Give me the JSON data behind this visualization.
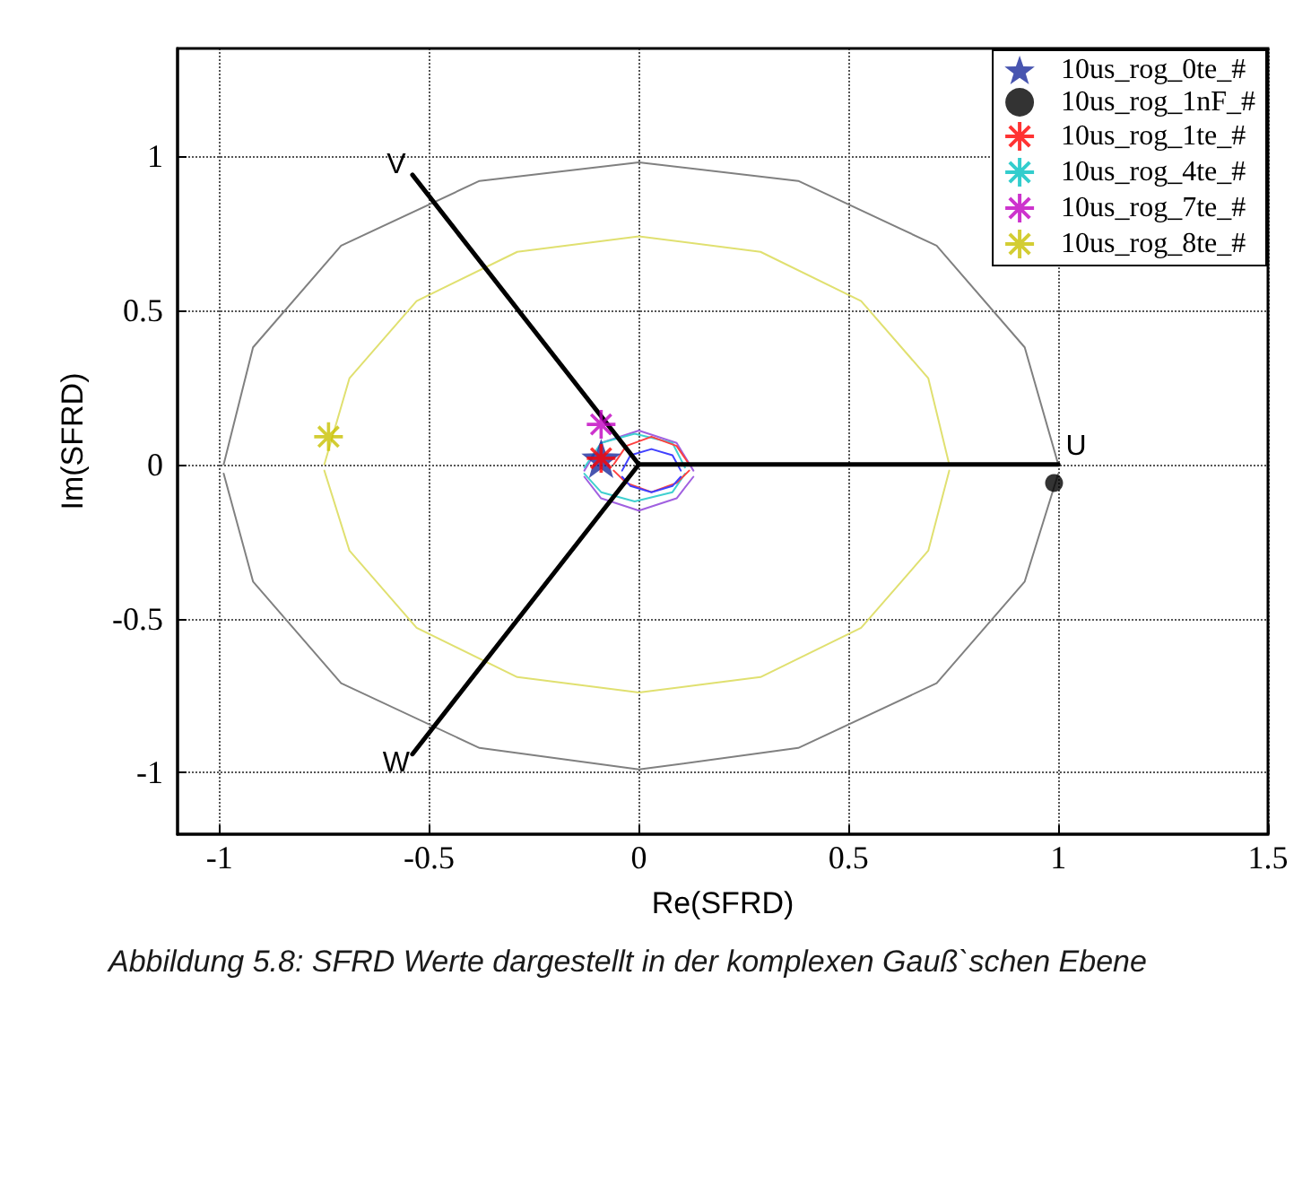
{
  "chart_data": {
    "type": "scatter",
    "xlabel": "Re(SFRD)",
    "ylabel": "Im(SFRD)",
    "xlim": [
      -1.1,
      1.5
    ],
    "ylim": [
      -1.2,
      1.35
    ],
    "xticks": [
      -1,
      -0.5,
      0,
      0.5,
      1,
      1.5
    ],
    "yticks": [
      -1,
      -0.5,
      0,
      0.5,
      1
    ],
    "grid": true,
    "legend": "top right",
    "series": [
      {
        "name": "10us_rog_0te_#",
        "color": "#1a2a9c",
        "marker": "star",
        "x": [
          -0.09
        ],
        "values": [
          0.02
        ]
      },
      {
        "name": "10us_rog_1nF_#",
        "color": "#000000",
        "marker": "circle",
        "x": [
          0.99
        ],
        "values": [
          -0.06
        ]
      },
      {
        "name": "10us_rog_1te_#",
        "color": "#ff0000",
        "marker": "cross",
        "x": [
          -0.09
        ],
        "values": [
          0.02
        ]
      },
      {
        "name": "10us_rog_4te_#",
        "color": "#00c0c0",
        "marker": "cross"
      },
      {
        "name": "10us_rog_7te_#",
        "color": "#c000c0",
        "marker": "cross",
        "x": [
          -0.09
        ],
        "values": [
          0.13
        ]
      },
      {
        "name": "10us_rog_8te_#",
        "color": "#c8c000",
        "marker": "cross",
        "x": [
          -0.74
        ],
        "values": [
          0.09
        ]
      },
      {
        "type": "line",
        "color": "#808080",
        "x": [
          -0.99,
          -0.92,
          -0.71,
          -0.38,
          0,
          0.38,
          0.71,
          0.92,
          1
        ],
        "values": [
          0,
          0.38,
          0.71,
          0.92,
          0.98,
          0.92,
          0.71,
          0.38,
          0
        ]
      },
      {
        "type": "line",
        "color": "#808080",
        "x": [
          -0.99,
          -0.92,
          -0.71,
          -0.38,
          0,
          0.38,
          0.71,
          0.92,
          1
        ],
        "values": [
          -0.03,
          -0.38,
          -0.71,
          -0.92,
          -0.99,
          -0.92,
          -0.71,
          -0.38,
          -0.03
        ]
      },
      {
        "type": "line",
        "color": "#e0e070",
        "x": [
          -0.75,
          -0.69,
          -0.53,
          -0.29,
          0,
          0.29,
          0.53,
          0.69,
          0.74
        ],
        "values": [
          0,
          0.28,
          0.53,
          0.69,
          0.74,
          0.69,
          0.53,
          0.28,
          0
        ]
      },
      {
        "type": "line",
        "color": "#e0e070",
        "x": [
          -0.75,
          -0.69,
          -0.53,
          -0.29,
          0,
          0.29,
          0.53,
          0.69,
          0.74
        ],
        "values": [
          -0.02,
          -0.28,
          -0.53,
          -0.69,
          -0.74,
          -0.69,
          -0.53,
          -0.28,
          -0.02
        ]
      },
      {
        "type": "line",
        "color": "#a060e0",
        "x": [
          -0.13,
          -0.09,
          0,
          0.09,
          0.13
        ],
        "values": [
          -0.02,
          0.07,
          0.11,
          0.07,
          -0.02
        ]
      },
      {
        "type": "line",
        "color": "#a060e0",
        "x": [
          -0.13,
          -0.09,
          0,
          0.09,
          0.13
        ],
        "values": [
          -0.04,
          -0.11,
          -0.15,
          -0.11,
          -0.04
        ]
      },
      {
        "type": "line",
        "color": "#40d0d0",
        "x": [
          -0.13,
          -0.09,
          -0.01,
          0.08,
          0.11
        ],
        "values": [
          -0.01,
          0.07,
          0.1,
          0.07,
          -0.01
        ]
      },
      {
        "type": "line",
        "color": "#40d0d0",
        "x": [
          -0.13,
          -0.09,
          -0.01,
          0.08,
          0.11
        ],
        "values": [
          -0.03,
          -0.09,
          -0.12,
          -0.09,
          -0.03
        ]
      },
      {
        "type": "line",
        "color": "#ff4040",
        "x": [
          -0.06,
          -0.03,
          0.03,
          0.09,
          0.12
        ],
        "values": [
          0,
          0.06,
          0.09,
          0.06,
          0
        ]
      },
      {
        "type": "line",
        "color": "#ff4040",
        "x": [
          -0.06,
          -0.03,
          0.03,
          0.09,
          0.12
        ],
        "values": [
          -0.02,
          -0.06,
          -0.09,
          -0.06,
          -0.02
        ]
      },
      {
        "type": "line",
        "color": "#4040ff",
        "x": [
          -0.04,
          -0.02,
          0.03,
          0.08,
          0.1
        ],
        "values": [
          -0.02,
          0.03,
          0.05,
          0.03,
          -0.02
        ]
      },
      {
        "type": "line",
        "color": "#4040ff",
        "x": [
          -0.04,
          -0.02,
          0.03,
          0.08,
          0.1
        ],
        "values": [
          -0.04,
          -0.07,
          -0.09,
          -0.07,
          -0.04
        ]
      },
      {
        "type": "line",
        "name": "U",
        "color": "#000000",
        "x": [
          0,
          1
        ],
        "values": [
          0,
          0
        ]
      },
      {
        "type": "line",
        "name": "V",
        "color": "#000000",
        "x": [
          0,
          -0.54
        ],
        "values": [
          0,
          0.94
        ]
      },
      {
        "type": "line",
        "name": "W",
        "color": "#000000",
        "x": [
          0,
          -0.54
        ],
        "values": [
          0,
          -0.94
        ]
      }
    ],
    "annotations": [
      "Abbildung 5.8: SFRD Werte dargestellt in der komplexen Gauß`schen Ebene"
    ]
  }
}
